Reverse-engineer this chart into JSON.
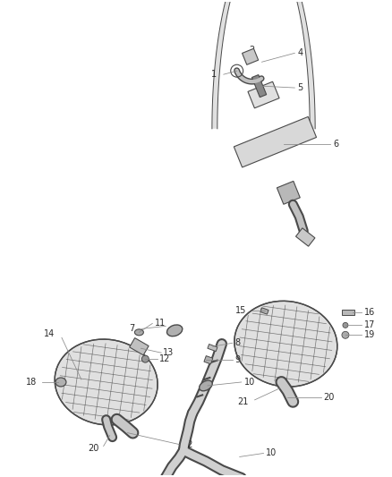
{
  "bg_color": "#ffffff",
  "line_color": "#4a4a4a",
  "label_color": "#2a2a2a",
  "lw": 0.8,
  "label_fs": 7.0
}
